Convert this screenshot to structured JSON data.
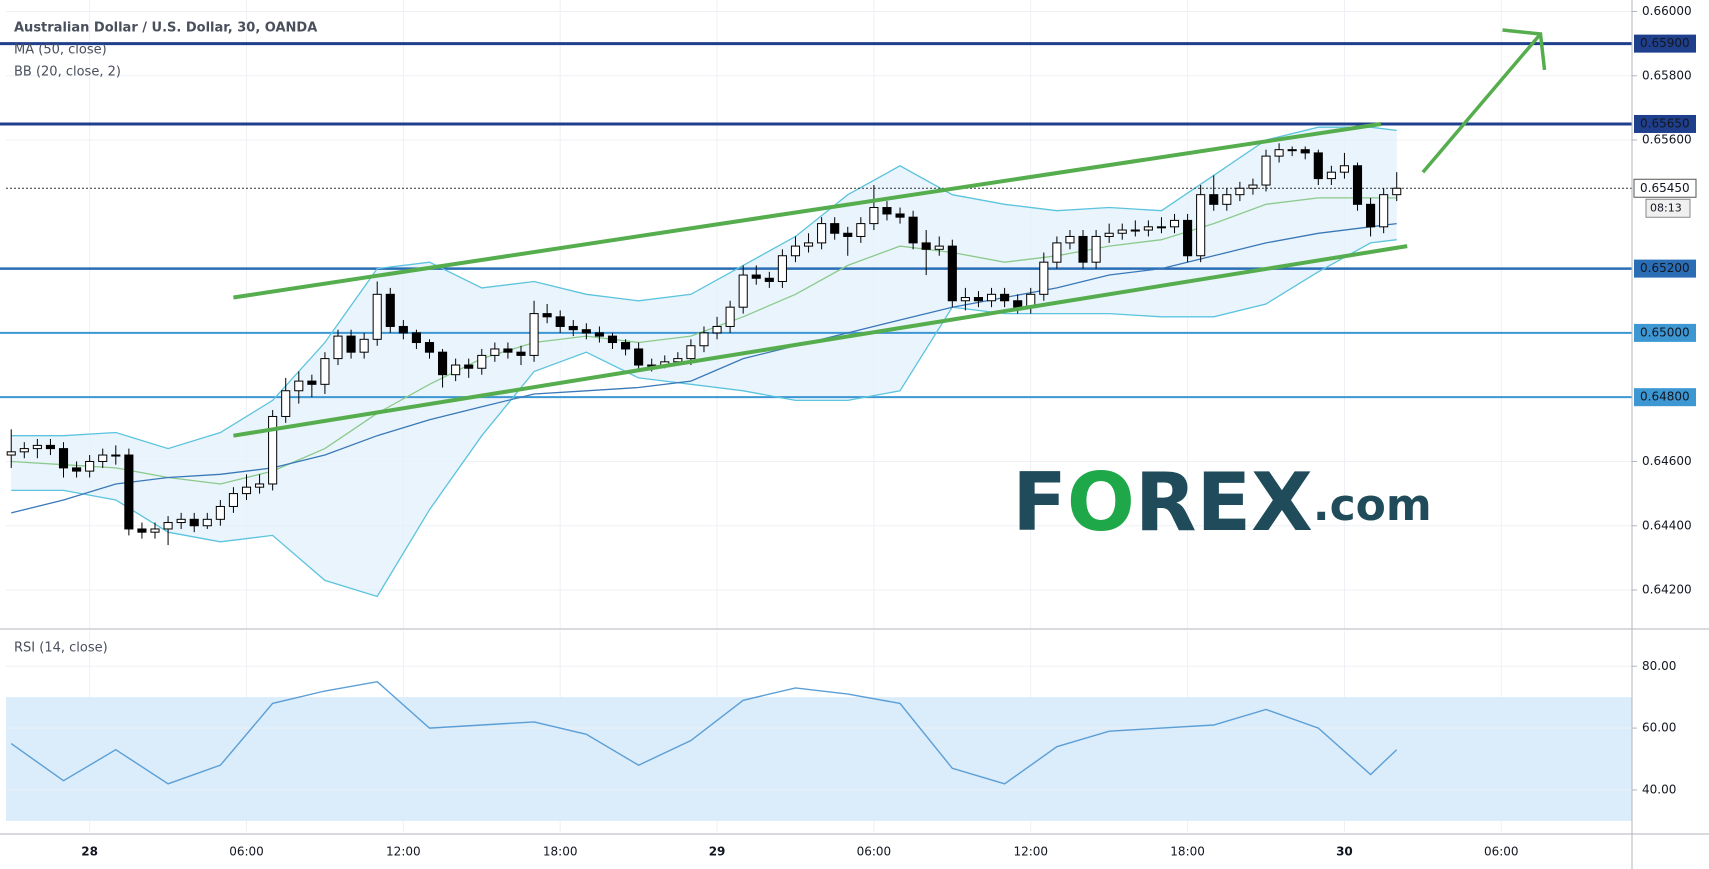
{
  "chart_data": {
    "type": "candlestick",
    "title": "Australian Dollar / U.S. Dollar, 30, OANDA",
    "x": [
      -3,
      -2.5,
      -2,
      -1.5,
      -1,
      -0.5,
      0,
      0.5,
      1,
      1.5,
      2,
      2.5,
      3,
      3.5,
      4,
      4.5,
      5,
      5.5,
      6,
      6.5,
      7,
      7.5,
      8,
      8.5,
      9,
      9.5,
      10,
      10.5,
      11,
      11.5,
      12,
      12.5,
      13,
      13.5,
      14,
      14.5,
      15,
      15.5,
      16,
      16.5,
      17,
      17.5,
      18,
      18.5,
      19,
      19.5,
      20,
      20.5,
      21,
      21.5,
      22,
      22.5,
      23,
      23.5,
      24,
      24.5,
      25,
      25.5,
      26,
      26.5,
      27,
      27.5,
      28,
      28.5,
      29,
      29.5,
      30,
      30.5,
      31,
      31.5,
      32,
      32.5,
      33,
      33.5,
      34,
      34.5,
      35,
      35.5,
      36,
      36.5,
      37,
      37.5,
      38,
      38.5,
      39,
      39.5,
      40,
      40.5,
      41,
      41.5,
      42,
      42.5,
      43,
      43.5,
      44,
      44.5,
      45,
      45.5,
      46,
      46.5,
      47,
      47.5,
      48,
      48.5,
      49,
      49.5,
      50
    ],
    "open": [
      0.6462,
      0.6463,
      0.6464,
      0.6465,
      0.6464,
      0.6458,
      0.6457,
      0.646,
      0.6462,
      0.6462,
      0.6439,
      0.6438,
      0.6439,
      0.6441,
      0.6442,
      0.644,
      0.6442,
      0.6446,
      0.645,
      0.6452,
      0.6453,
      0.6474,
      0.6482,
      0.6485,
      0.6484,
      0.6492,
      0.6499,
      0.6494,
      0.6498,
      0.6512,
      0.6502,
      0.65,
      0.6497,
      0.6494,
      0.6487,
      0.649,
      0.6489,
      0.6493,
      0.6495,
      0.6494,
      0.6493,
      0.6506,
      0.6505,
      0.6502,
      0.6501,
      0.65,
      0.6499,
      0.6497,
      0.6495,
      0.649,
      0.649,
      0.6491,
      0.6492,
      0.6496,
      0.65,
      0.6502,
      0.6508,
      0.6518,
      0.6517,
      0.6516,
      0.6524,
      0.6527,
      0.6528,
      0.6534,
      0.6531,
      0.653,
      0.6534,
      0.6539,
      0.6537,
      0.6536,
      0.6528,
      0.6526,
      0.6527,
      0.651,
      0.6511,
      0.651,
      0.6512,
      0.651,
      0.6508,
      0.6512,
      0.6522,
      0.6528,
      0.653,
      0.6522,
      0.653,
      0.6531,
      0.6532,
      0.6532,
      0.6533,
      0.6533,
      0.6535,
      0.6524,
      0.6543,
      0.654,
      0.6543,
      0.6545,
      0.6546,
      0.6555,
      0.6557,
      0.6557,
      0.6556,
      0.6548,
      0.655,
      0.6552,
      0.654,
      0.6533,
      0.6543
    ],
    "high": [
      0.647,
      0.6466,
      0.6467,
      0.6467,
      0.6466,
      0.646,
      0.6462,
      0.6464,
      0.6465,
      0.6464,
      0.6441,
      0.6441,
      0.6443,
      0.6444,
      0.6444,
      0.6444,
      0.6448,
      0.6452,
      0.6456,
      0.6456,
      0.6476,
      0.6486,
      0.6488,
      0.6487,
      0.6494,
      0.6501,
      0.6501,
      0.65,
      0.6516,
      0.6514,
      0.6504,
      0.6501,
      0.6498,
      0.6495,
      0.6492,
      0.6492,
      0.6495,
      0.6497,
      0.6497,
      0.6496,
      0.651,
      0.6509,
      0.6507,
      0.6504,
      0.6503,
      0.6502,
      0.65,
      0.6498,
      0.6497,
      0.6492,
      0.6493,
      0.6494,
      0.6498,
      0.6502,
      0.6505,
      0.651,
      0.6521,
      0.6521,
      0.6519,
      0.6526,
      0.653,
      0.6531,
      0.6536,
      0.6536,
      0.6533,
      0.6536,
      0.6546,
      0.6541,
      0.6539,
      0.6538,
      0.6532,
      0.653,
      0.6529,
      0.6514,
      0.6513,
      0.6514,
      0.6514,
      0.6512,
      0.6514,
      0.6525,
      0.653,
      0.6532,
      0.6532,
      0.6532,
      0.6534,
      0.6534,
      0.6535,
      0.6535,
      0.6536,
      0.6537,
      0.6537,
      0.6546,
      0.6549,
      0.6545,
      0.6547,
      0.6548,
      0.6557,
      0.6559,
      0.6558,
      0.6558,
      0.6557,
      0.6552,
      0.6556,
      0.6553,
      0.6542,
      0.6545,
      0.655
    ],
    "low": [
      0.6458,
      0.6461,
      0.6461,
      0.6462,
      0.6455,
      0.6455,
      0.6455,
      0.6458,
      0.6459,
      0.6437,
      0.6436,
      0.6436,
      0.6434,
      0.6439,
      0.6438,
      0.6439,
      0.644,
      0.6444,
      0.6448,
      0.645,
      0.6451,
      0.6472,
      0.6478,
      0.648,
      0.6481,
      0.649,
      0.6492,
      0.6492,
      0.6496,
      0.65,
      0.6498,
      0.6495,
      0.6492,
      0.6483,
      0.6485,
      0.6486,
      0.6487,
      0.6491,
      0.6492,
      0.649,
      0.6491,
      0.6503,
      0.65,
      0.6499,
      0.6498,
      0.6497,
      0.6495,
      0.6493,
      0.6488,
      0.6488,
      0.6489,
      0.649,
      0.649,
      0.6494,
      0.6498,
      0.65,
      0.6506,
      0.6515,
      0.6514,
      0.6514,
      0.6522,
      0.6525,
      0.6526,
      0.6529,
      0.6524,
      0.6528,
      0.6532,
      0.6535,
      0.6534,
      0.6526,
      0.6518,
      0.6524,
      0.6508,
      0.6507,
      0.6508,
      0.6508,
      0.6508,
      0.6506,
      0.6506,
      0.651,
      0.652,
      0.6526,
      0.652,
      0.652,
      0.6528,
      0.6529,
      0.653,
      0.653,
      0.6531,
      0.6531,
      0.6522,
      0.6522,
      0.6538,
      0.6538,
      0.6541,
      0.6543,
      0.6544,
      0.6553,
      0.6555,
      0.6554,
      0.6546,
      0.6546,
      0.6548,
      0.6538,
      0.653,
      0.6531,
      0.6541
    ],
    "close": [
      0.6463,
      0.6464,
      0.6465,
      0.6464,
      0.6458,
      0.6457,
      0.646,
      0.6462,
      0.6462,
      0.6439,
      0.6438,
      0.6439,
      0.6441,
      0.6442,
      0.644,
      0.6442,
      0.6446,
      0.645,
      0.6452,
      0.6453,
      0.6474,
      0.6482,
      0.6485,
      0.6484,
      0.6492,
      0.6499,
      0.6494,
      0.6498,
      0.6512,
      0.6502,
      0.65,
      0.6497,
      0.6494,
      0.6487,
      0.649,
      0.6489,
      0.6493,
      0.6495,
      0.6494,
      0.6493,
      0.6506,
      0.6505,
      0.6502,
      0.6501,
      0.65,
      0.6499,
      0.6497,
      0.6495,
      0.649,
      0.649,
      0.6491,
      0.6492,
      0.6496,
      0.65,
      0.6502,
      0.6508,
      0.6518,
      0.6517,
      0.6516,
      0.6524,
      0.6527,
      0.6528,
      0.6534,
      0.6531,
      0.653,
      0.6534,
      0.6539,
      0.6537,
      0.6536,
      0.6528,
      0.6526,
      0.6527,
      0.651,
      0.6511,
      0.651,
      0.6512,
      0.651,
      0.6508,
      0.6512,
      0.6522,
      0.6528,
      0.653,
      0.6522,
      0.653,
      0.6531,
      0.6532,
      0.6532,
      0.6533,
      0.6533,
      0.6535,
      0.6524,
      0.6543,
      0.654,
      0.6543,
      0.6545,
      0.6546,
      0.6555,
      0.6557,
      0.6557,
      0.6556,
      0.6548,
      0.655,
      0.6552,
      0.654,
      0.6533,
      0.6543,
      0.6545
    ],
    "up_color": "#ffffff",
    "down_color": "#000000",
    "wick_color": "#000000",
    "indicator_x": [
      -3,
      -1,
      1,
      3,
      5,
      7,
      9,
      11,
      13,
      15,
      17,
      19,
      21,
      23,
      25,
      27,
      29,
      31,
      33,
      35,
      37,
      39,
      41,
      43,
      45,
      47,
      49,
      50
    ],
    "ma": {
      "name": "MA (50, close)",
      "color": "#3a78b8",
      "values": [
        0.6444,
        0.6448,
        0.6453,
        0.6455,
        0.6456,
        0.6458,
        0.6462,
        0.6468,
        0.6473,
        0.6477,
        0.6481,
        0.6482,
        0.6483,
        0.6485,
        0.6492,
        0.6496,
        0.65,
        0.6504,
        0.6508,
        0.6511,
        0.6514,
        0.6518,
        0.652,
        0.6524,
        0.6528,
        0.6531,
        0.6533,
        0.6534
      ]
    },
    "bb": {
      "name": "BB (20, close, 2)",
      "color": "#5cc4de",
      "basis_color": "#8cca8c",
      "fill": "#e3f1fb",
      "upper": [
        0.6468,
        0.6468,
        0.6469,
        0.6464,
        0.6469,
        0.6479,
        0.6497,
        0.652,
        0.6522,
        0.6514,
        0.6516,
        0.6512,
        0.651,
        0.6512,
        0.6521,
        0.653,
        0.6543,
        0.6552,
        0.6543,
        0.654,
        0.6538,
        0.6539,
        0.6538,
        0.6549,
        0.656,
        0.6564,
        0.6564,
        0.6563
      ],
      "basis": [
        0.646,
        0.6459,
        0.6458,
        0.6455,
        0.6453,
        0.6457,
        0.6464,
        0.6475,
        0.6484,
        0.6492,
        0.6497,
        0.6499,
        0.6497,
        0.6499,
        0.6505,
        0.6512,
        0.6521,
        0.6527,
        0.6525,
        0.6522,
        0.6524,
        0.6527,
        0.6529,
        0.6534,
        0.654,
        0.6542,
        0.6542,
        0.6542
      ],
      "lower": [
        0.6451,
        0.6451,
        0.6448,
        0.6438,
        0.6435,
        0.6437,
        0.6423,
        0.6418,
        0.6445,
        0.6468,
        0.6488,
        0.6494,
        0.6486,
        0.6484,
        0.6482,
        0.6479,
        0.6479,
        0.6482,
        0.6508,
        0.6506,
        0.6506,
        0.6506,
        0.6505,
        0.6505,
        0.6509,
        0.6519,
        0.6528,
        0.6529
      ]
    },
    "levels": [
      {
        "value": 0.659,
        "label": "0.65900",
        "color": "#1f3f8c",
        "width": 3
      },
      {
        "value": 0.6565,
        "label": "0.65650",
        "color": "#1f3f8c",
        "width": 3
      },
      {
        "value": 0.652,
        "label": "0.65200",
        "color": "#2a6db5",
        "width": 2.5
      },
      {
        "value": 0.65,
        "label": "0.65000",
        "color": "#3c97d3",
        "width": 2
      },
      {
        "value": 0.648,
        "label": "0.64800",
        "color": "#3c97d3",
        "width": 2
      }
    ],
    "last": {
      "value": 0.6545,
      "label": "0.65450",
      "countdown": "08:13"
    },
    "trendlines": [
      {
        "x": [
          5.5,
          49.4
        ],
        "y": [
          0.6511,
          0.6565
        ]
      },
      {
        "x": [
          5.5,
          50.4
        ],
        "y": [
          0.6468,
          0.6527
        ]
      }
    ],
    "arrow": {
      "x": [
        51,
        55.5
      ],
      "y": [
        0.655,
        0.6593
      ]
    },
    "trend_color": "#55ad4e",
    "xlim": [
      -3.2,
      59
    ],
    "ylim": [
      0.64085,
      0.66017
    ],
    "xticks": [
      {
        "value": 0,
        "label": "28"
      },
      {
        "value": 6,
        "label": "06:00"
      },
      {
        "value": 12,
        "label": "12:00"
      },
      {
        "value": 18,
        "label": "18:00"
      },
      {
        "value": 24,
        "label": "29"
      },
      {
        "value": 30,
        "label": "06:00"
      },
      {
        "value": 36,
        "label": "12:00"
      },
      {
        "value": 42,
        "label": "18:00"
      },
      {
        "value": 48,
        "label": "30"
      },
      {
        "value": 54,
        "label": "06:00"
      }
    ],
    "yticks": [
      {
        "value": 0.642,
        "label": "0.64200"
      },
      {
        "value": 0.644,
        "label": "0.64400"
      },
      {
        "value": 0.646,
        "label": "0.64600"
      },
      {
        "value": 0.656,
        "label": "0.65600"
      },
      {
        "value": 0.658,
        "label": "0.65800"
      },
      {
        "value": 0.66,
        "label": "0.66000"
      }
    ],
    "grid": true,
    "rsi": {
      "type": "line",
      "title": "RSI (14, close)",
      "color": "#5b9fd6",
      "band": [
        30,
        70
      ],
      "band_color": "#dbecfa",
      "values": [
        55,
        43,
        53,
        42,
        48,
        68,
        72,
        75,
        60,
        61,
        62,
        58,
        48,
        56,
        69,
        73,
        71,
        68,
        47,
        42,
        54,
        59,
        60,
        61,
        66,
        60,
        45,
        53
      ],
      "ylim": [
        26.4,
        91.4
      ],
      "yticks": [
        {
          "value": 40,
          "label": "40.00"
        },
        {
          "value": 60,
          "label": "60.00"
        },
        {
          "value": 80,
          "label": "80.00"
        }
      ]
    }
  },
  "watermark": {
    "parts": [
      "F",
      "O",
      "REX",
      ".com"
    ],
    "colors": [
      "#1f4b5a",
      "#1fa84a",
      "#1f4b5a",
      "#1f4b5a"
    ]
  }
}
